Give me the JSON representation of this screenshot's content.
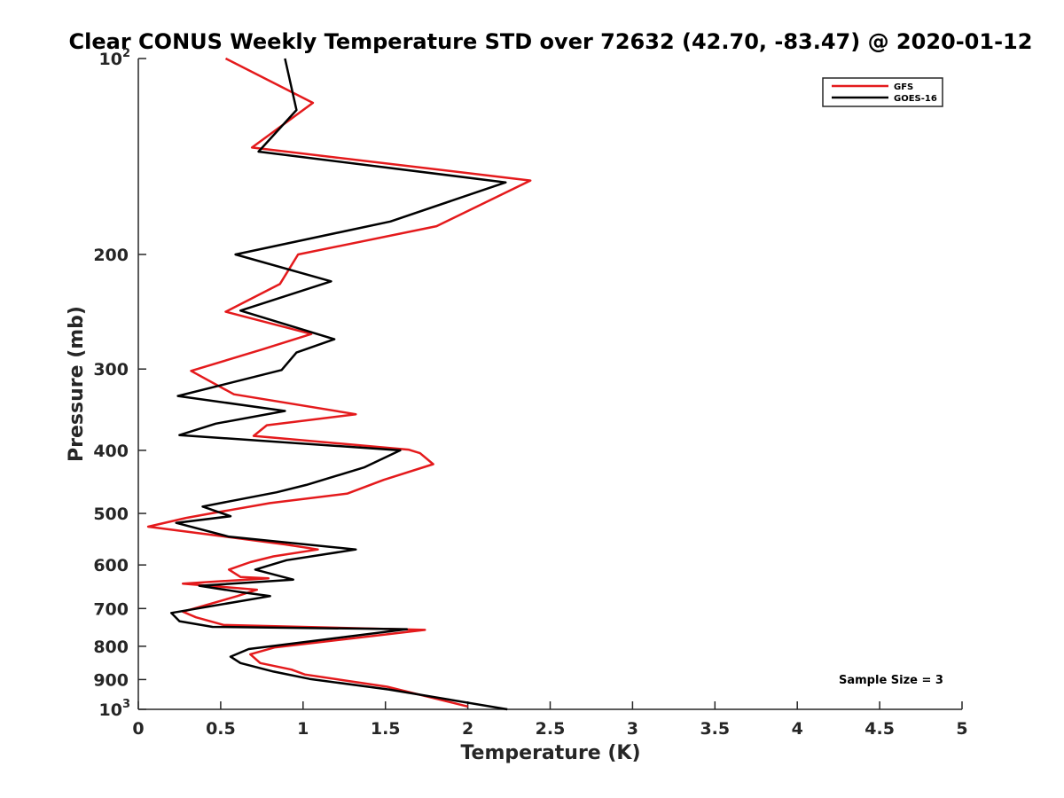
{
  "chart_data": {
    "type": "line",
    "title": "Clear CONUS Weekly Temperature STD over 72632 (42.70, -83.47) @ 2020-01-12",
    "xlabel": "Temperature (K)",
    "ylabel": "Pressure (mb)",
    "xlim": [
      0,
      5
    ],
    "ylim": [
      100,
      1000
    ],
    "y_scale": "log",
    "y_reversed": true,
    "grid": false,
    "legend_position": "top-right",
    "annotation": "Sample Size = 3",
    "x_ticks": [
      "0",
      "0.5",
      "1",
      "1.5",
      "2",
      "2.5",
      "3",
      "3.5",
      "4",
      "4.5",
      "5"
    ],
    "y_ticks": [
      {
        "base": "10",
        "exp": "2"
      },
      {
        "base": "200",
        "exp": ""
      },
      {
        "base": "300",
        "exp": ""
      },
      {
        "base": "400",
        "exp": ""
      },
      {
        "base": "500",
        "exp": ""
      },
      {
        "base": "600",
        "exp": ""
      },
      {
        "base": "700",
        "exp": ""
      },
      {
        "base": "800",
        "exp": ""
      },
      {
        "base": "900",
        "exp": ""
      },
      {
        "base": "10",
        "exp": "3"
      }
    ],
    "series": [
      {
        "name": "GFS",
        "color": "#e41a1c",
        "points": [
          [
            0.53,
            100
          ],
          [
            1.06,
            117
          ],
          [
            0.69,
            137
          ],
          [
            2.38,
            154
          ],
          [
            1.81,
            181
          ],
          [
            0.97,
            200
          ],
          [
            0.86,
            222
          ],
          [
            0.53,
            245
          ],
          [
            1.05,
            265
          ],
          [
            0.75,
            280
          ],
          [
            0.32,
            302
          ],
          [
            0.58,
            328
          ],
          [
            1.32,
            352
          ],
          [
            0.78,
            366
          ],
          [
            0.7,
            380
          ],
          [
            1.64,
            399
          ],
          [
            1.71,
            404
          ],
          [
            1.79,
            420
          ],
          [
            1.49,
            444
          ],
          [
            1.27,
            466
          ],
          [
            0.8,
            482
          ],
          [
            0.46,
            499
          ],
          [
            0.29,
            508
          ],
          [
            0.06,
            524
          ],
          [
            0.41,
            538
          ],
          [
            0.89,
            558
          ],
          [
            1.09,
            568
          ],
          [
            0.82,
            582
          ],
          [
            0.68,
            594
          ],
          [
            0.55,
            610
          ],
          [
            0.62,
            626
          ],
          [
            0.79,
            629
          ],
          [
            0.27,
            641
          ],
          [
            0.72,
            655
          ],
          [
            0.6,
            670
          ],
          [
            0.27,
            708
          ],
          [
            0.35,
            722
          ],
          [
            0.52,
            742
          ],
          [
            1.74,
            755
          ],
          [
            0.83,
            803
          ],
          [
            0.68,
            823
          ],
          [
            0.74,
            849
          ],
          [
            0.93,
            869
          ],
          [
            1.01,
            884
          ],
          [
            1.51,
            923
          ],
          [
            2.0,
            990
          ]
        ]
      },
      {
        "name": "GOES-16",
        "color": "#000000",
        "points": [
          [
            0.89,
            100
          ],
          [
            0.96,
            120
          ],
          [
            0.73,
            139
          ],
          [
            2.23,
            155
          ],
          [
            1.53,
            178
          ],
          [
            0.59,
            200
          ],
          [
            1.17,
            220
          ],
          [
            0.62,
            244
          ],
          [
            1.19,
            270
          ],
          [
            0.96,
            283
          ],
          [
            0.87,
            301
          ],
          [
            0.24,
            330
          ],
          [
            0.89,
            348
          ],
          [
            0.47,
            364
          ],
          [
            0.25,
            379
          ],
          [
            1.59,
            400
          ],
          [
            1.37,
            425
          ],
          [
            1.02,
            452
          ],
          [
            0.84,
            464
          ],
          [
            0.39,
            488
          ],
          [
            0.56,
            505
          ],
          [
            0.23,
            517
          ],
          [
            0.55,
            543
          ],
          [
            1.32,
            568
          ],
          [
            0.9,
            590
          ],
          [
            0.71,
            610
          ],
          [
            0.94,
            632
          ],
          [
            0.37,
            646
          ],
          [
            0.61,
            660
          ],
          [
            0.8,
            670
          ],
          [
            0.2,
            711
          ],
          [
            0.25,
            732
          ],
          [
            0.45,
            747
          ],
          [
            1.63,
            753
          ],
          [
            0.67,
            808
          ],
          [
            0.56,
            830
          ],
          [
            0.62,
            849
          ],
          [
            0.82,
            875
          ],
          [
            1.04,
            898
          ],
          [
            1.52,
            932
          ],
          [
            2.24,
            1000
          ]
        ]
      }
    ]
  }
}
